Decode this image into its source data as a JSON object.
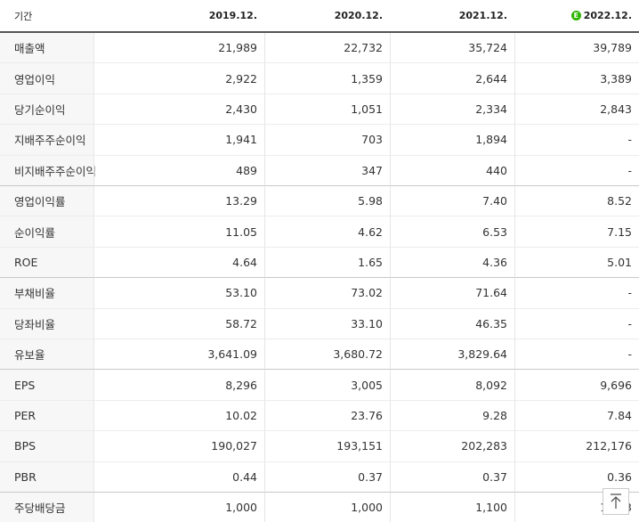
{
  "table": {
    "header": {
      "label": "기간",
      "badge": "E",
      "columns": [
        "2019.12.",
        "2020.12.",
        "2021.12.",
        "2022.12."
      ]
    },
    "rows": [
      [
        "매출액",
        "21,989",
        "22,732",
        "35,724",
        "39,789"
      ],
      [
        "영업이익",
        "2,922",
        "1,359",
        "2,644",
        "3,389"
      ],
      [
        "당기순이익",
        "2,430",
        "1,051",
        "2,334",
        "2,843"
      ],
      [
        "지배주주순이익",
        "1,941",
        "703",
        "1,894",
        "-"
      ],
      [
        "비지배주주순이익",
        "489",
        "347",
        "440",
        "-"
      ],
      [
        "영업이익률",
        "13.29",
        "5.98",
        "7.40",
        "8.52"
      ],
      [
        "순이익률",
        "11.05",
        "4.62",
        "6.53",
        "7.15"
      ],
      [
        "ROE",
        "4.64",
        "1.65",
        "4.36",
        "5.01"
      ],
      [
        "부채비율",
        "53.10",
        "73.02",
        "71.64",
        "-"
      ],
      [
        "당좌비율",
        "58.72",
        "33.10",
        "46.35",
        "-"
      ],
      [
        "유보율",
        "3,641.09",
        "3,680.72",
        "3,829.64",
        "-"
      ],
      [
        "EPS",
        "8,296",
        "3,005",
        "8,092",
        "9,696"
      ],
      [
        "PER",
        "10.02",
        "23.76",
        "9.28",
        "7.84"
      ],
      [
        "BPS",
        "190,027",
        "193,151",
        "202,283",
        "212,176"
      ],
      [
        "PBR",
        "0.44",
        "0.37",
        "0.37",
        "0.36"
      ],
      [
        "주당배당금",
        "1,000",
        "1,000",
        "1,100",
        "1,333"
      ]
    ]
  }
}
